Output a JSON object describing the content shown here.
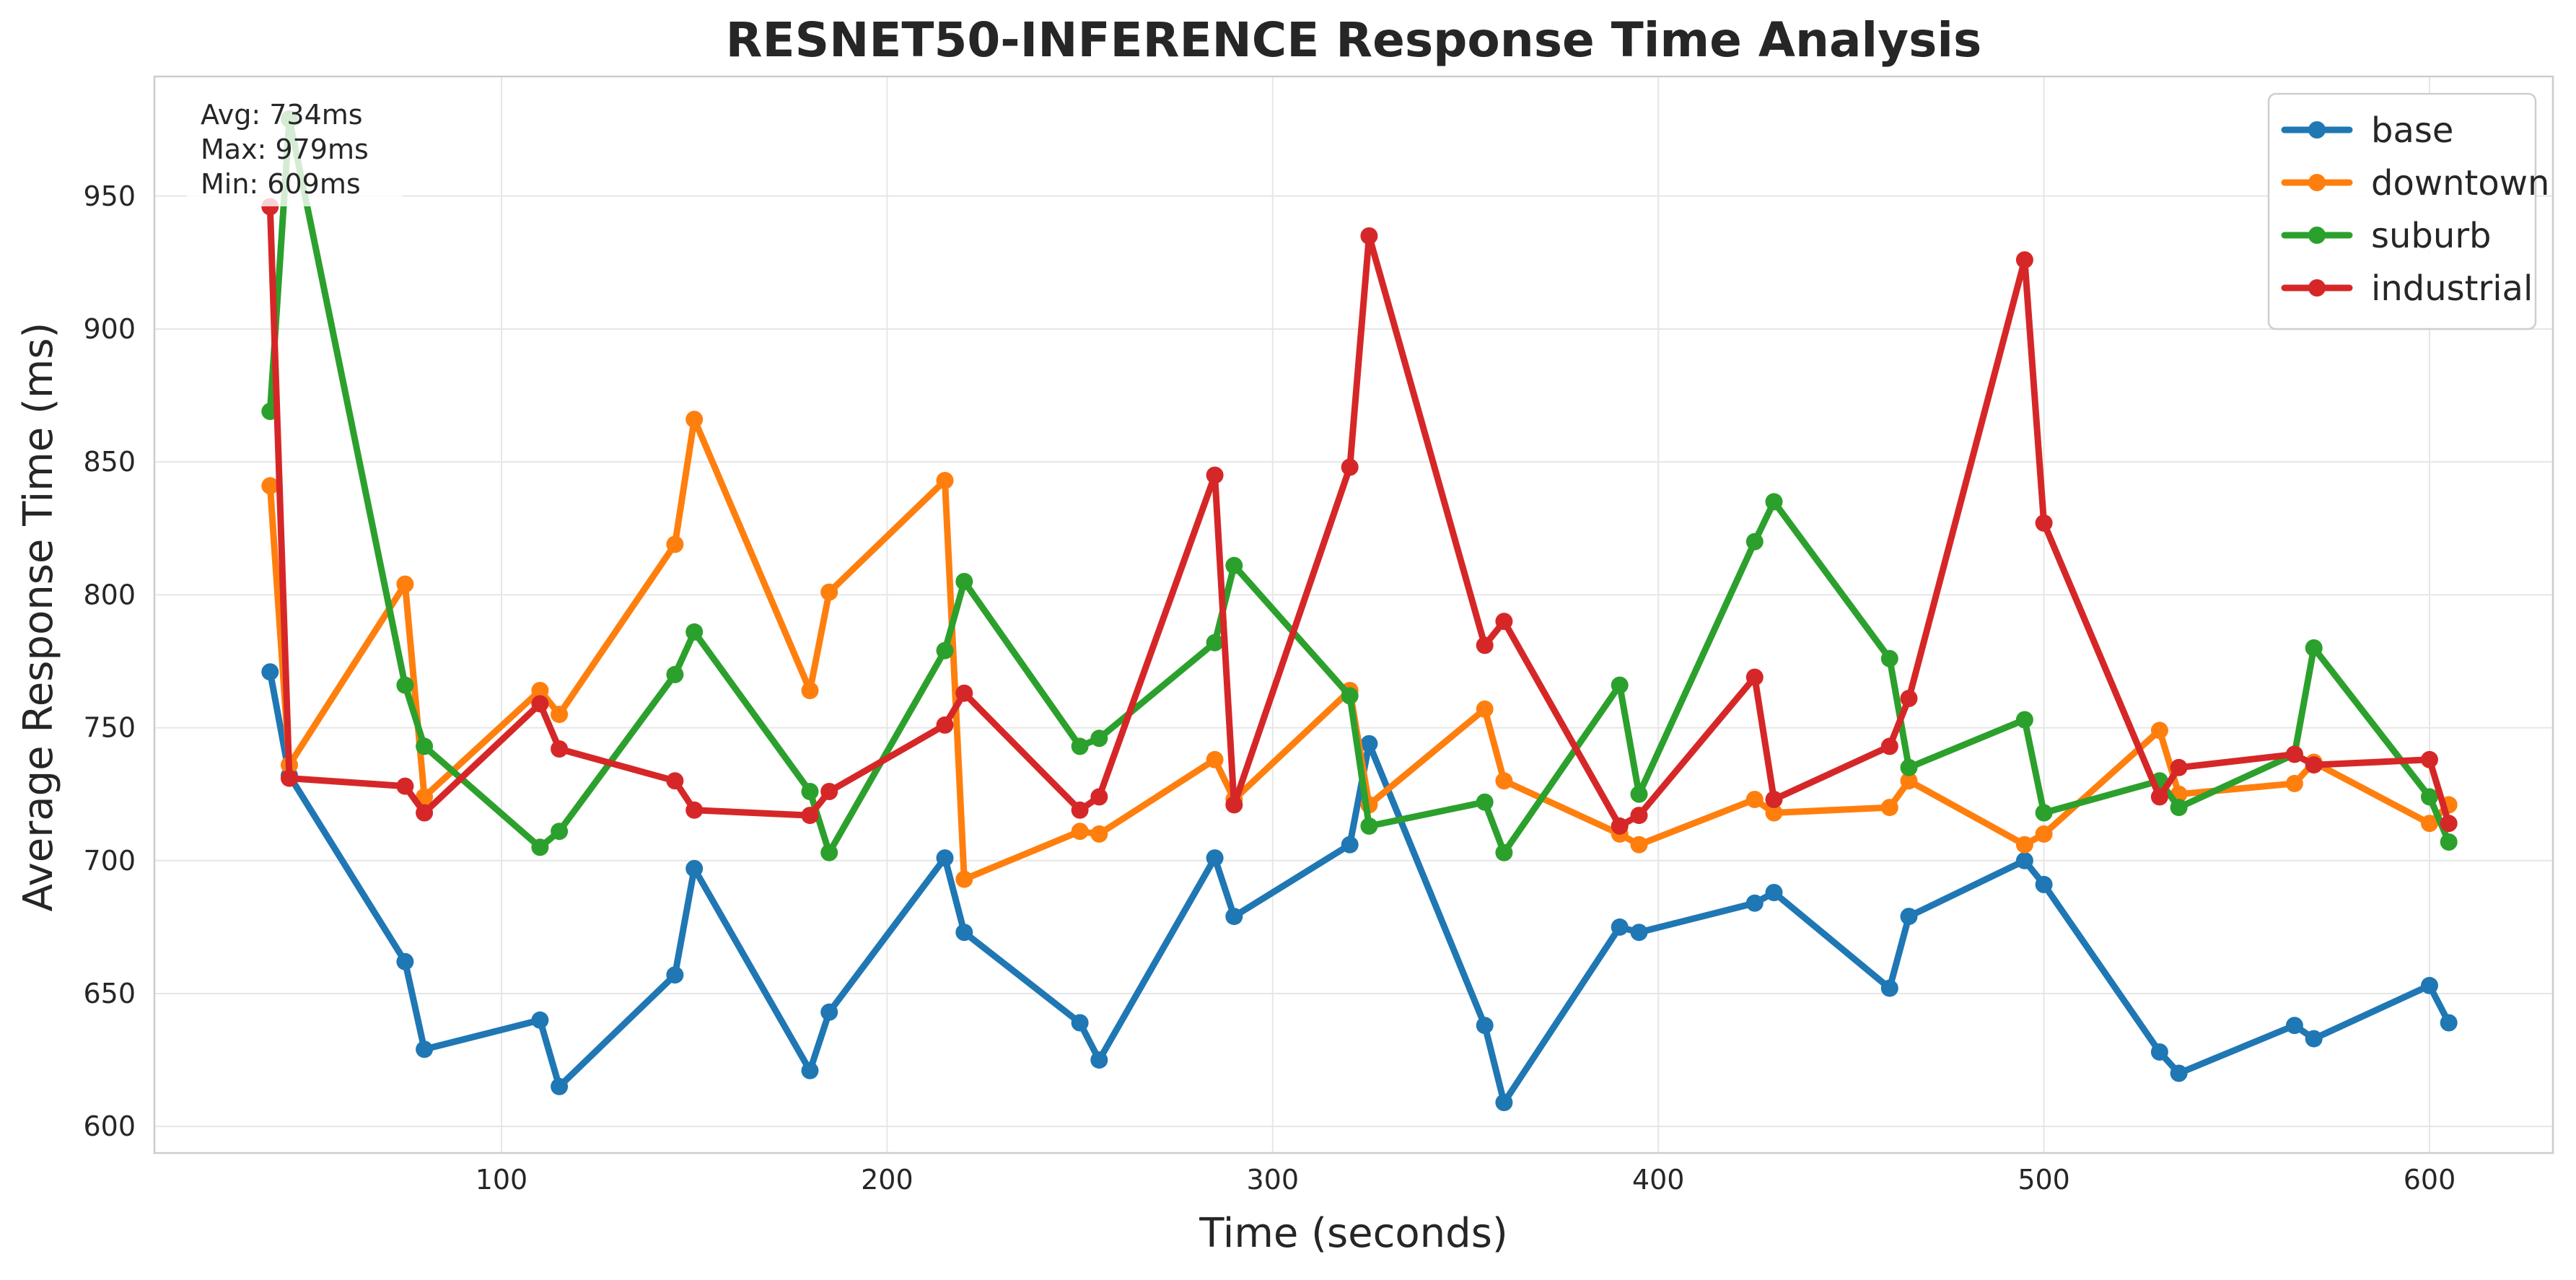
{
  "chart_data": {
    "type": "line",
    "title": "RESNET50-INFERENCE Response Time Analysis",
    "xlabel": "Time (seconds)",
    "ylabel": "Average Response Time (ms)",
    "xlim": [
      10,
      632
    ],
    "ylim": [
      590,
      995
    ],
    "xticks": [
      100,
      200,
      300,
      400,
      500,
      600
    ],
    "yticks": [
      600,
      650,
      700,
      750,
      800,
      850,
      900,
      950
    ],
    "grid": true,
    "legend_position": "top-right",
    "stats_box": {
      "position": "top-left",
      "lines": [
        "Avg: 734ms",
        "Max: 979ms",
        "Min: 609ms"
      ]
    },
    "series": [
      {
        "name": "base",
        "color": "#1f77b4",
        "x": [
          40,
          45,
          75,
          80,
          110,
          115,
          145,
          150,
          180,
          185,
          215,
          220,
          250,
          255,
          285,
          290,
          320,
          325,
          355,
          360,
          390,
          395,
          425,
          430,
          460,
          465,
          495,
          500,
          530,
          535,
          565,
          570,
          600,
          605
        ],
        "y": [
          771,
          732,
          662,
          629,
          640,
          615,
          657,
          697,
          621,
          643,
          701,
          673,
          639,
          625,
          701,
          679,
          706,
          744,
          638,
          609,
          675,
          673,
          684,
          688,
          652,
          679,
          700,
          691,
          628,
          620,
          638,
          633,
          653,
          639
        ]
      },
      {
        "name": "downtown",
        "color": "#ff7f0e",
        "x": [
          40,
          45,
          75,
          80,
          110,
          115,
          145,
          150,
          180,
          185,
          215,
          220,
          250,
          255,
          285,
          290,
          320,
          325,
          355,
          360,
          390,
          395,
          425,
          430,
          460,
          465,
          495,
          500,
          530,
          535,
          565,
          570,
          600,
          605
        ],
        "y": [
          841,
          736,
          804,
          724,
          764,
          755,
          819,
          866,
          764,
          801,
          843,
          693,
          711,
          710,
          738,
          723,
          764,
          721,
          757,
          730,
          710,
          706,
          723,
          718,
          720,
          730,
          706,
          710,
          749,
          725,
          729,
          737,
          714,
          721
        ]
      },
      {
        "name": "suburb",
        "color": "#2ca02c",
        "x": [
          40,
          45,
          75,
          80,
          110,
          115,
          145,
          150,
          180,
          185,
          215,
          220,
          250,
          255,
          285,
          290,
          320,
          325,
          355,
          360,
          390,
          395,
          425,
          430,
          460,
          465,
          495,
          500,
          530,
          535,
          565,
          570,
          600,
          605
        ],
        "y": [
          869,
          979,
          766,
          743,
          705,
          711,
          770,
          786,
          726,
          703,
          779,
          805,
          743,
          746,
          782,
          811,
          762,
          713,
          722,
          703,
          766,
          725,
          820,
          835,
          776,
          735,
          753,
          718,
          730,
          720,
          740,
          780,
          724,
          707
        ]
      },
      {
        "name": "industrial",
        "color": "#d62728",
        "x": [
          40,
          45,
          75,
          80,
          110,
          115,
          145,
          150,
          180,
          185,
          215,
          220,
          250,
          255,
          285,
          290,
          320,
          325,
          355,
          360,
          390,
          395,
          425,
          430,
          460,
          465,
          495,
          500,
          530,
          535,
          565,
          570,
          600,
          605
        ],
        "y": [
          946,
          731,
          728,
          718,
          759,
          742,
          730,
          719,
          717,
          726,
          751,
          763,
          719,
          724,
          845,
          721,
          848,
          935,
          781,
          790,
          713,
          717,
          769,
          723,
          743,
          761,
          926,
          827,
          724,
          735,
          740,
          736,
          738,
          714
        ]
      }
    ]
  }
}
